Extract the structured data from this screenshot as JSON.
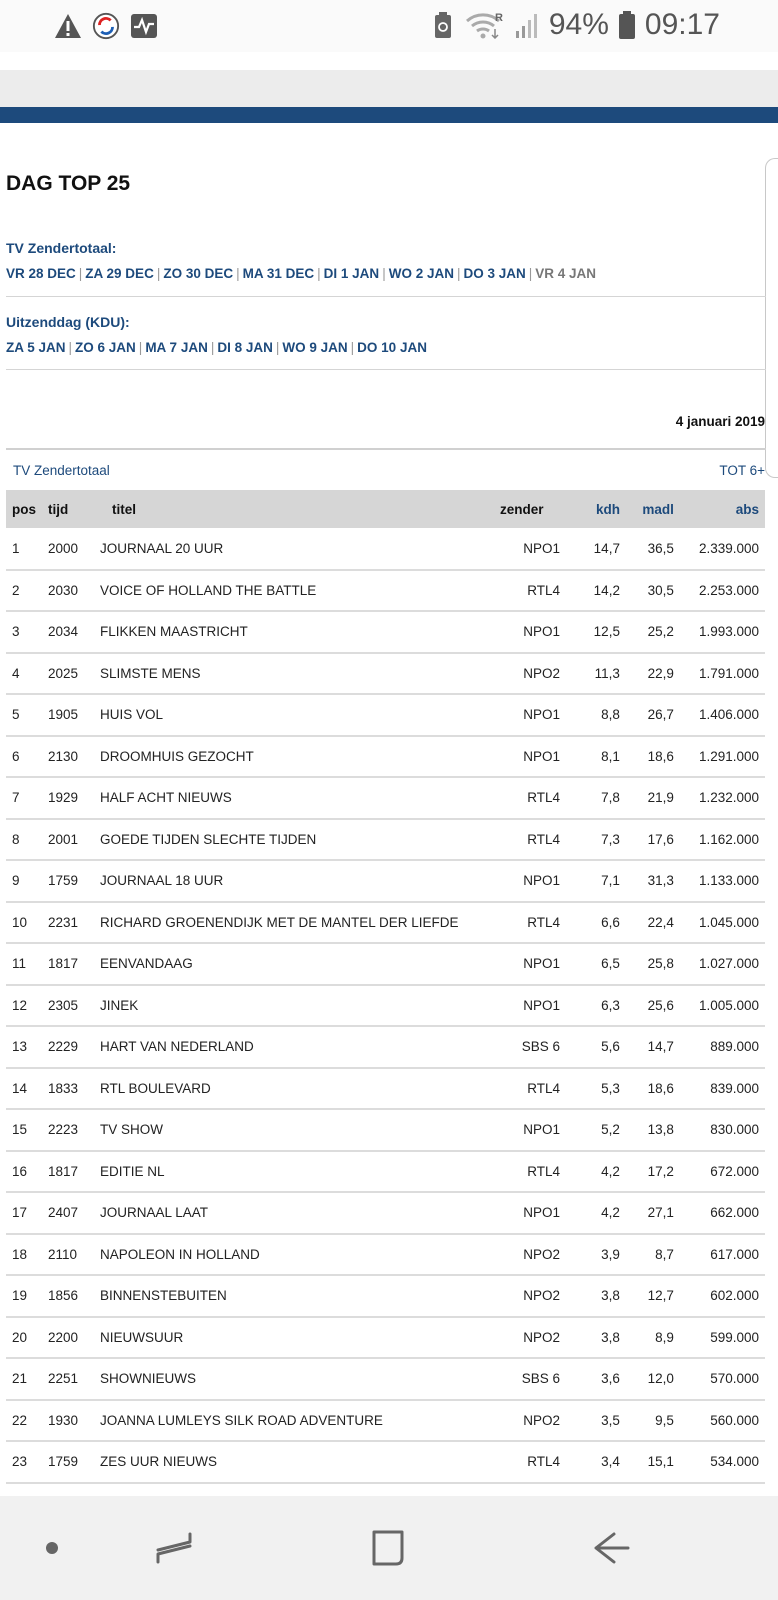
{
  "status_bar": {
    "battery_percent": "94%",
    "time": "09:17",
    "roaming_label": "R"
  },
  "page": {
    "title": "DAG TOP 25",
    "tv_zendertotaal_label": "TV Zendertotaal:",
    "tv_days": [
      "VR 28 DEC",
      "ZA 29 DEC",
      "ZO 30 DEC",
      "MA 31 DEC",
      "DI 1 JAN",
      "WO 2 JAN",
      "DO 3 JAN",
      "VR 4 JAN"
    ],
    "tv_current_day": "VR 4 JAN",
    "kdu_label": "Uitzenddag (KDU):",
    "kdu_days": [
      "ZA 5 JAN",
      "ZO 6 JAN",
      "MA 7 JAN",
      "DI 8 JAN",
      "WO 9 JAN",
      "DO 10 JAN"
    ],
    "date": "4 januari 2019",
    "subheader_left": "TV Zendertotaal",
    "subheader_right": "TOT 6+"
  },
  "table": {
    "headers": {
      "pos": "pos",
      "tijd": "tijd",
      "titel": "titel",
      "zender": "zender",
      "kdh": "kdh",
      "madl": "madl",
      "abs": "abs"
    },
    "rows": [
      {
        "pos": "1",
        "tijd": "2000",
        "titel": "JOURNAAL 20 UUR",
        "zender": "NPO1",
        "kdh": "14,7",
        "madl": "36,5",
        "abs": "2.339.000"
      },
      {
        "pos": "2",
        "tijd": "2030",
        "titel": "VOICE OF HOLLAND THE BATTLE",
        "zender": "RTL4",
        "kdh": "14,2",
        "madl": "30,5",
        "abs": "2.253.000"
      },
      {
        "pos": "3",
        "tijd": "2034",
        "titel": "FLIKKEN MAASTRICHT",
        "zender": "NPO1",
        "kdh": "12,5",
        "madl": "25,2",
        "abs": "1.993.000"
      },
      {
        "pos": "4",
        "tijd": "2025",
        "titel": "SLIMSTE MENS",
        "zender": "NPO2",
        "kdh": "11,3",
        "madl": "22,9",
        "abs": "1.791.000"
      },
      {
        "pos": "5",
        "tijd": "1905",
        "titel": "HUIS VOL",
        "zender": "NPO1",
        "kdh": "8,8",
        "madl": "26,7",
        "abs": "1.406.000"
      },
      {
        "pos": "6",
        "tijd": "2130",
        "titel": "DROOMHUIS GEZOCHT",
        "zender": "NPO1",
        "kdh": "8,1",
        "madl": "18,6",
        "abs": "1.291.000"
      },
      {
        "pos": "7",
        "tijd": "1929",
        "titel": "HALF ACHT NIEUWS",
        "zender": "RTL4",
        "kdh": "7,8",
        "madl": "21,9",
        "abs": "1.232.000"
      },
      {
        "pos": "8",
        "tijd": "2001",
        "titel": "GOEDE TIJDEN SLECHTE TIJDEN",
        "zender": "RTL4",
        "kdh": "7,3",
        "madl": "17,6",
        "abs": "1.162.000"
      },
      {
        "pos": "9",
        "tijd": "1759",
        "titel": "JOURNAAL 18 UUR",
        "zender": "NPO1",
        "kdh": "7,1",
        "madl": "31,3",
        "abs": "1.133.000"
      },
      {
        "pos": "10",
        "tijd": "2231",
        "titel": "RICHARD GROENENDIJK MET DE MANTEL DER LIEFDE",
        "zender": "RTL4",
        "kdh": "6,6",
        "madl": "22,4",
        "abs": "1.045.000"
      },
      {
        "pos": "11",
        "tijd": "1817",
        "titel": "EENVANDAAG",
        "zender": "NPO1",
        "kdh": "6,5",
        "madl": "25,8",
        "abs": "1.027.000"
      },
      {
        "pos": "12",
        "tijd": "2305",
        "titel": "JINEK",
        "zender": "NPO1",
        "kdh": "6,3",
        "madl": "25,6",
        "abs": "1.005.000"
      },
      {
        "pos": "13",
        "tijd": "2229",
        "titel": "HART VAN NEDERLAND",
        "zender": "SBS 6",
        "kdh": "5,6",
        "madl": "14,7",
        "abs": "889.000"
      },
      {
        "pos": "14",
        "tijd": "1833",
        "titel": "RTL BOULEVARD",
        "zender": "RTL4",
        "kdh": "5,3",
        "madl": "18,6",
        "abs": "839.000"
      },
      {
        "pos": "15",
        "tijd": "2223",
        "titel": "TV SHOW",
        "zender": "NPO1",
        "kdh": "5,2",
        "madl": "13,8",
        "abs": "830.000"
      },
      {
        "pos": "16",
        "tijd": "1817",
        "titel": "EDITIE NL",
        "zender": "RTL4",
        "kdh": "4,2",
        "madl": "17,2",
        "abs": "672.000"
      },
      {
        "pos": "17",
        "tijd": "2407",
        "titel": "JOURNAAL LAAT",
        "zender": "NPO1",
        "kdh": "4,2",
        "madl": "27,1",
        "abs": "662.000"
      },
      {
        "pos": "18",
        "tijd": "2110",
        "titel": "NAPOLEON IN HOLLAND",
        "zender": "NPO2",
        "kdh": "3,9",
        "madl": "8,7",
        "abs": "617.000"
      },
      {
        "pos": "19",
        "tijd": "1856",
        "titel": "BINNENSTEBUITEN",
        "zender": "NPO2",
        "kdh": "3,8",
        "madl": "12,7",
        "abs": "602.000"
      },
      {
        "pos": "20",
        "tijd": "2200",
        "titel": "NIEUWSUUR",
        "zender": "NPO2",
        "kdh": "3,8",
        "madl": "8,9",
        "abs": "599.000"
      },
      {
        "pos": "21",
        "tijd": "2251",
        "titel": "SHOWNIEUWS",
        "zender": "SBS 6",
        "kdh": "3,6",
        "madl": "12,0",
        "abs": "570.000"
      },
      {
        "pos": "22",
        "tijd": "1930",
        "titel": "JOANNA LUMLEYS SILK ROAD ADVENTURE",
        "zender": "NPO2",
        "kdh": "3,5",
        "madl": "9,5",
        "abs": "560.000"
      },
      {
        "pos": "23",
        "tijd": "1759",
        "titel": "ZES UUR NIEUWS",
        "zender": "RTL4",
        "kdh": "3,4",
        "madl": "15,1",
        "abs": "534.000"
      }
    ]
  },
  "colors": {
    "link_blue": "#1d4a7c",
    "header_grey": "#d6d6d6"
  },
  "icons": {
    "status_left": [
      "warning-icon",
      "sync-icon",
      "activity-icon"
    ],
    "status_right": [
      "battery-saver-icon",
      "wifi-icon",
      "signal-icon",
      "battery-icon"
    ],
    "nav": [
      "dot-icon",
      "recents-icon",
      "home-icon",
      "back-icon"
    ]
  }
}
